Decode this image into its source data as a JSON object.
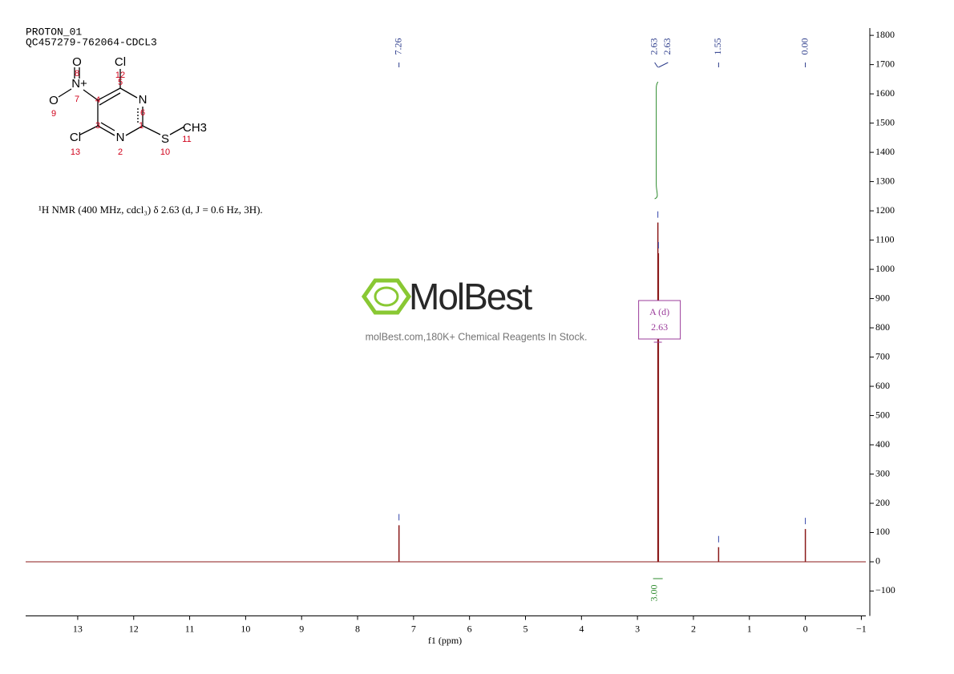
{
  "header": {
    "title": "PROTON_01",
    "sample": "QC457279-762064-CDCL3",
    "nmr_text": "¹H NMR (400 MHz, cdcl₃) δ 2.63 (d, J = 0.6 Hz, 3H)."
  },
  "structure": {
    "atoms": [
      "Cl",
      "12",
      "5",
      "N",
      "6",
      "1",
      "CH3",
      "11",
      "S",
      "10",
      "N",
      "2",
      "3",
      "Cl",
      "13",
      "4",
      "N+",
      "7",
      "O",
      "8",
      "O",
      "9"
    ]
  },
  "watermark": {
    "brand": "MolBest",
    "tagline": "molBest.com,180K+ Chemical Reagents In Stock."
  },
  "chart_data": {
    "type": "nmr",
    "x_label": "f1 (ppm)",
    "xlim": [
      13.93,
      -1.08
    ],
    "xticks": [
      13,
      12,
      11,
      10,
      9,
      8,
      7,
      6,
      5,
      4,
      3,
      2,
      1,
      0,
      {
        "value": -1,
        "label": "−1"
      }
    ],
    "ylim": [
      -185,
      1825
    ],
    "yticks": [
      {
        "value": -100,
        "label": "−100"
      },
      0,
      100,
      200,
      300,
      400,
      500,
      600,
      700,
      800,
      900,
      1000,
      1100,
      1200,
      1300,
      1400,
      1500,
      1600,
      1700,
      1800
    ],
    "color": "#8b1a1a",
    "peaks": [
      {
        "x": 7.26,
        "height": 125
      },
      {
        "x": 2.635,
        "height": 1160
      },
      {
        "x": 2.625,
        "height": 1055
      },
      {
        "x": 1.55,
        "height": 50
      },
      {
        "x": 0.0,
        "height": 112
      }
    ],
    "peak_labels": [
      "7.26",
      "2.63",
      "2.63",
      "1.55",
      "0.00"
    ],
    "integrals": [
      {
        "label": "3.00",
        "color": "#2e8b2e"
      }
    ],
    "multiplets": [
      {
        "name": "A (d)",
        "shift": "2.63",
        "color": "#9b3c9b"
      }
    ]
  }
}
